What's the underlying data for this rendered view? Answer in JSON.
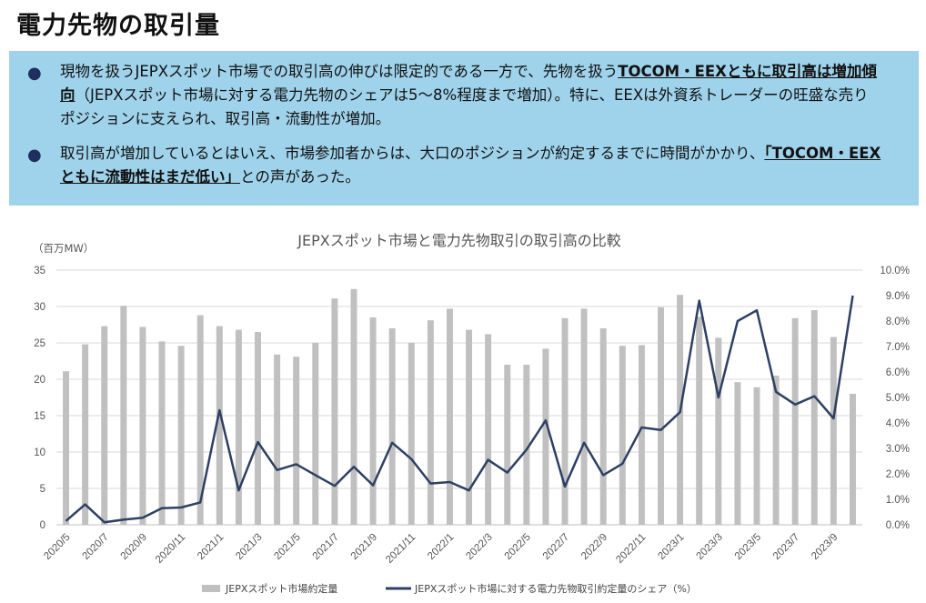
{
  "header": {
    "title": "電力先物の取引量"
  },
  "bullets": [
    {
      "pre": "現物を扱うJEPXスポット市場での取引高の伸びは限定的である一方で、先物を扱う",
      "highlight": "TOCOM・EEXともに取引高は増加傾向",
      "post": "（JEPXスポット市場に対する電力先物のシェアは5～8%程度まで増加）。特に、EEXは外資系トレーダーの旺盛な売りポジションに支えられ、取引高・流動性が増加。"
    },
    {
      "pre": "取引高が増加しているとはいえ、市場参加者からは、大口のポジションが約定するまでに時間がかかり、",
      "highlight": "「TOCOM・EEXともに流動性はまだ低い」",
      "post": "との声があった。"
    }
  ],
  "colors": {
    "bar": "#c0c0c0",
    "line": "#2e4063",
    "banner": "#9fd3eb"
  },
  "chart_data": {
    "type": "bar+line",
    "title": "JEPXスポット市場と電力先物取引の取引高の比較",
    "y_left_unit": "（百万MW）",
    "y_left_ticks": [
      "0",
      "5",
      "10",
      "15",
      "20",
      "25",
      "30",
      "35"
    ],
    "y_left_lim": [
      0,
      35
    ],
    "y_right_ticks": [
      "0.0%",
      "1.0%",
      "2.0%",
      "3.0%",
      "4.0%",
      "5.0%",
      "6.0%",
      "7.0%",
      "8.0%",
      "9.0%",
      "10.0%"
    ],
    "y_right_lim": [
      0,
      10
    ],
    "categories": [
      "2020/5",
      "2020/6",
      "2020/7",
      "2020/8",
      "2020/9",
      "2020/10",
      "2020/11",
      "2020/12",
      "2021/1",
      "2021/2",
      "2021/3",
      "2021/4",
      "2021/5",
      "2021/6",
      "2021/7",
      "2021/8",
      "2021/9",
      "2021/10",
      "2021/11",
      "2021/12",
      "2022/1",
      "2022/2",
      "2022/3",
      "2022/4",
      "2022/5",
      "2022/6",
      "2022/7",
      "2022/8",
      "2022/9",
      "2022/10",
      "2022/11",
      "2022/12",
      "2023/1",
      "2023/2",
      "2023/3",
      "2023/4",
      "2023/5",
      "2023/6",
      "2023/7",
      "2023/8",
      "2023/9",
      "2023/10"
    ],
    "x_tick_labels": [
      "2020/5",
      "2020/7",
      "2020/9",
      "2020/11",
      "2021/1",
      "2021/3",
      "2021/5",
      "2021/7",
      "2021/9",
      "2021/11",
      "2022/1",
      "2022/3",
      "2022/5",
      "2022/7",
      "2022/9",
      "2022/11",
      "2023/1",
      "2023/3",
      "2023/5",
      "2023/7",
      "2023/9"
    ],
    "series": [
      {
        "name": "JEPXスポット市場約定量",
        "type": "bar",
        "axis": "left",
        "values": [
          21.1,
          24.8,
          27.3,
          30.1,
          27.2,
          25.2,
          24.6,
          28.8,
          27.3,
          26.8,
          26.5,
          23.4,
          23.1,
          25.0,
          31.1,
          32.4,
          28.5,
          27.0,
          25.0,
          28.1,
          29.7,
          26.8,
          26.2,
          22.0,
          22.0,
          24.2,
          28.4,
          29.7,
          27.0,
          24.6,
          24.7,
          29.9,
          31.6,
          28.6,
          25.7,
          19.6,
          18.9,
          20.5,
          28.4,
          29.5,
          25.8,
          18.0
        ]
      },
      {
        "name": "JEPXスポット市場に対する電力先物取引約定量のシェア（%）",
        "type": "line",
        "axis": "right",
        "values": [
          0.15,
          0.8,
          0.1,
          0.2,
          0.28,
          0.65,
          0.68,
          0.88,
          4.5,
          1.35,
          3.25,
          2.15,
          2.38,
          1.95,
          1.53,
          2.28,
          1.55,
          3.22,
          2.58,
          1.62,
          1.68,
          1.35,
          2.55,
          2.05,
          2.95,
          4.1,
          1.5,
          3.22,
          1.95,
          2.4,
          3.82,
          3.72,
          4.42,
          8.8,
          5.0,
          8.0,
          8.42,
          5.22,
          4.72,
          5.05,
          4.18,
          9.0
        ]
      }
    ]
  }
}
